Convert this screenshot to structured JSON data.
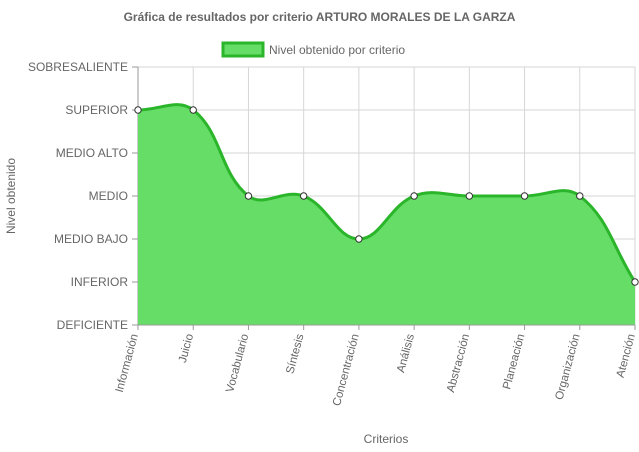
{
  "chart_data": {
    "type": "area",
    "title": "Gráfica de resultados por criterio ARTURO MORALES DE LA GARZA",
    "xlabel": "Criterios",
    "ylabel": "Nivel obtenido",
    "y_levels": [
      "DEFICIENTE",
      "INFERIOR",
      "MEDIO BAJO",
      "MEDIO",
      "MEDIO ALTO",
      "SUPERIOR",
      "SOBRESALIENTE"
    ],
    "ylim": [
      0,
      6
    ],
    "categories": [
      "Información",
      "Juicio",
      "Vocabulario",
      "Síntesis",
      "Concentración",
      "Análisis",
      "Abstracción",
      "Planeación",
      "Organización",
      "Atención"
    ],
    "series": [
      {
        "name": "Nivel obtenido por criterio",
        "values": [
          5,
          5,
          3,
          3,
          2,
          3,
          3,
          3,
          3,
          1
        ]
      }
    ],
    "colors": {
      "fill": "#66dd66",
      "line": "#2ab52a",
      "point_fill": "#ffffff",
      "point_stroke": "#333333"
    },
    "legend_position": "top",
    "grid": true
  }
}
